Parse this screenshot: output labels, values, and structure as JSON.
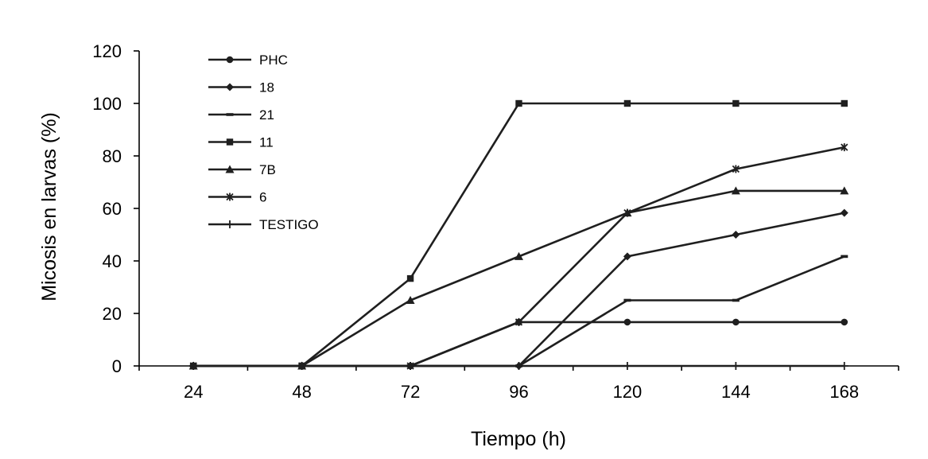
{
  "chart_data": {
    "type": "line",
    "xlabel": "Tiempo (h)",
    "ylabel": "Micosis en larvas (%)",
    "x": [
      24,
      48,
      72,
      96,
      120,
      144,
      168
    ],
    "x_tick_labels": [
      "24",
      "48",
      "72",
      "96",
      "120",
      "144",
      "168"
    ],
    "ylim": [
      0,
      120
    ],
    "y_ticks": [
      0,
      20,
      40,
      60,
      80,
      100,
      120
    ],
    "y_tick_labels": [
      "0",
      "20",
      "40",
      "60",
      "80",
      "100",
      "120"
    ],
    "grid": false,
    "legend_position": "top-left",
    "line_color": "#1f1f1f",
    "series": [
      {
        "name": "PHC",
        "marker": "circle",
        "values": [
          0,
          0,
          0,
          16.7,
          16.7,
          16.7,
          16.7
        ]
      },
      {
        "name": "18",
        "marker": "diamond",
        "values": [
          0,
          0,
          0,
          0,
          41.7,
          50,
          58.3
        ]
      },
      {
        "name": "21",
        "marker": "dash",
        "values": [
          0,
          0,
          0,
          0,
          25,
          25,
          41.7
        ]
      },
      {
        "name": "11",
        "marker": "square",
        "values": [
          0,
          0,
          33.3,
          100,
          100,
          100,
          100
        ]
      },
      {
        "name": "7B",
        "marker": "triangle",
        "values": [
          0,
          0,
          25,
          41.7,
          58.3,
          66.7,
          66.7
        ]
      },
      {
        "name": "6",
        "marker": "asterisk",
        "values": [
          0,
          0,
          0,
          16.7,
          58.3,
          75,
          83.3
        ]
      },
      {
        "name": "TESTIGO",
        "marker": "plus",
        "values": [
          0,
          0,
          0,
          0,
          0,
          0,
          0
        ]
      }
    ]
  }
}
